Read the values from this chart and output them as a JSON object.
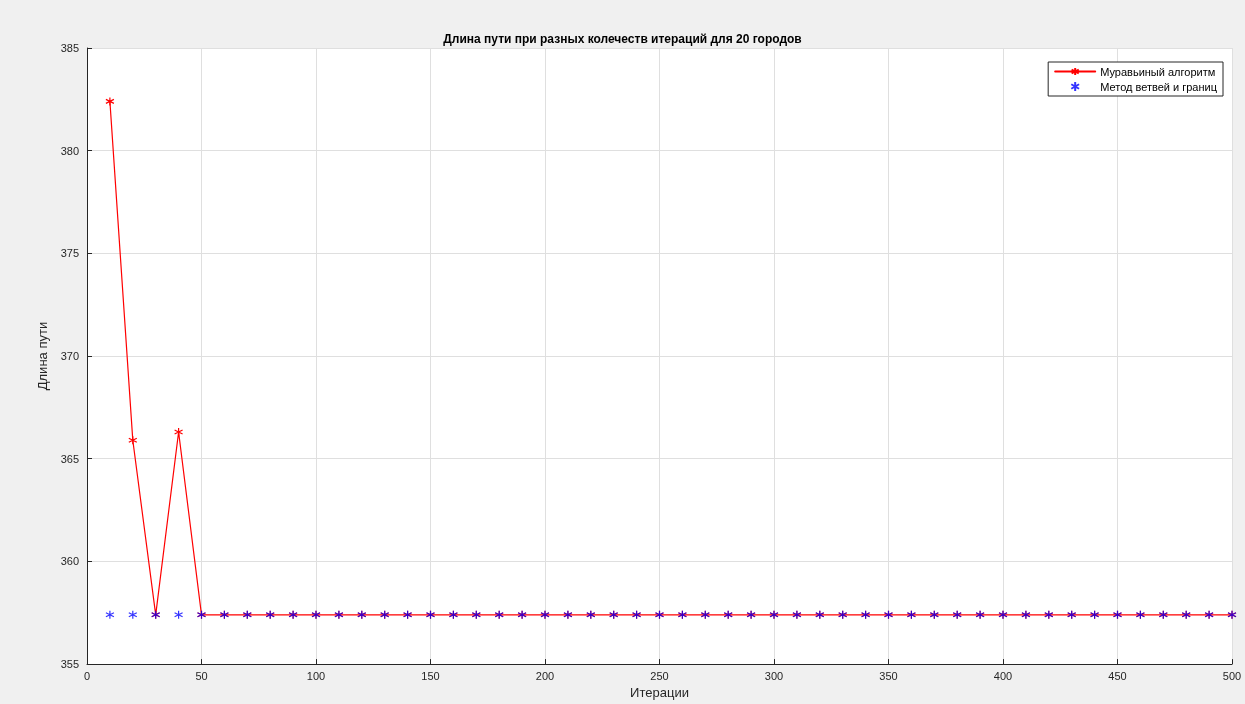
{
  "chart_data": {
    "type": "line",
    "title": "Длина пути при разных колечеств итераций для 20 городов",
    "xlabel": "Итерации",
    "ylabel": "Длина пути",
    "x": [
      10,
      20,
      30,
      40,
      50,
      60,
      70,
      80,
      90,
      100,
      110,
      120,
      130,
      140,
      150,
      160,
      170,
      180,
      190,
      200,
      210,
      220,
      230,
      240,
      250,
      260,
      270,
      280,
      290,
      300,
      310,
      320,
      330,
      340,
      350,
      360,
      370,
      380,
      390,
      400,
      410,
      420,
      430,
      440,
      450,
      460,
      470,
      480,
      490,
      500
    ],
    "series": [
      {
        "name": "Муравьиный алгоритм",
        "color": "#ff0000",
        "marker": "star",
        "line_style": "solid",
        "values": [
          382.4,
          365.9,
          357.4,
          366.3,
          357.4,
          357.4,
          357.4,
          357.4,
          357.4,
          357.4,
          357.4,
          357.4,
          357.4,
          357.4,
          357.4,
          357.4,
          357.4,
          357.4,
          357.4,
          357.4,
          357.4,
          357.4,
          357.4,
          357.4,
          357.4,
          357.4,
          357.4,
          357.4,
          357.4,
          357.4,
          357.4,
          357.4,
          357.4,
          357.4,
          357.4,
          357.4,
          357.4,
          357.4,
          357.4,
          357.4,
          357.4,
          357.4,
          357.4,
          357.4,
          357.4,
          357.4,
          357.4,
          357.4,
          357.4,
          357.4
        ]
      },
      {
        "name": "Метод ветвей и границ",
        "type": "scatter",
        "color": "#0000ff",
        "marker": "star",
        "values": [
          357.4,
          357.4,
          357.4,
          357.4,
          357.4,
          357.4,
          357.4,
          357.4,
          357.4,
          357.4,
          357.4,
          357.4,
          357.4,
          357.4,
          357.4,
          357.4,
          357.4,
          357.4,
          357.4,
          357.4,
          357.4,
          357.4,
          357.4,
          357.4,
          357.4,
          357.4,
          357.4,
          357.4,
          357.4,
          357.4,
          357.4,
          357.4,
          357.4,
          357.4,
          357.4,
          357.4,
          357.4,
          357.4,
          357.4,
          357.4,
          357.4,
          357.4,
          357.4,
          357.4,
          357.4,
          357.4,
          357.4,
          357.4,
          357.4,
          357.4
        ]
      }
    ],
    "xlim": [
      0,
      500
    ],
    "xticks": [
      0,
      50,
      100,
      150,
      200,
      250,
      300,
      350,
      400,
      450,
      500
    ],
    "ylim": [
      355,
      385
    ],
    "yticks": [
      355,
      360,
      365,
      370,
      375,
      380,
      385
    ],
    "grid": true,
    "legend": "top right"
  }
}
